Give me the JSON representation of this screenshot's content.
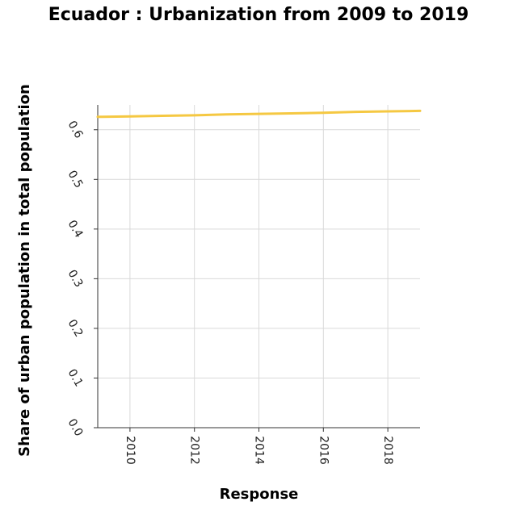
{
  "chart_data": {
    "type": "line",
    "title": "Ecuador : Urbanization from 2009 to 2019",
    "xlabel": "Response",
    "ylabel": "Share of urban population in total population",
    "xlim": [
      2009,
      2019
    ],
    "ylim": [
      0,
      0.65
    ],
    "x_ticks": [
      2010,
      2012,
      2014,
      2016,
      2018
    ],
    "x_tick_labels": [
      "2010",
      "2012",
      "2014",
      "2016",
      "2018"
    ],
    "y_ticks": [
      0,
      0.1,
      0.2,
      0.3,
      0.4,
      0.5,
      0.6
    ],
    "y_tick_labels": [
      "0.0",
      "0.1",
      "0.2",
      "0.3",
      "0.4",
      "0.5",
      "0.6"
    ],
    "grid": true,
    "series": [
      {
        "color": "#f5c842",
        "x": [
          2009,
          2010,
          2011,
          2012,
          2013,
          2014,
          2015,
          2016,
          2017,
          2018,
          2019
        ],
        "y": [
          0.626,
          0.627,
          0.628,
          0.629,
          0.631,
          0.632,
          0.633,
          0.634,
          0.636,
          0.637,
          0.638
        ]
      }
    ]
  }
}
